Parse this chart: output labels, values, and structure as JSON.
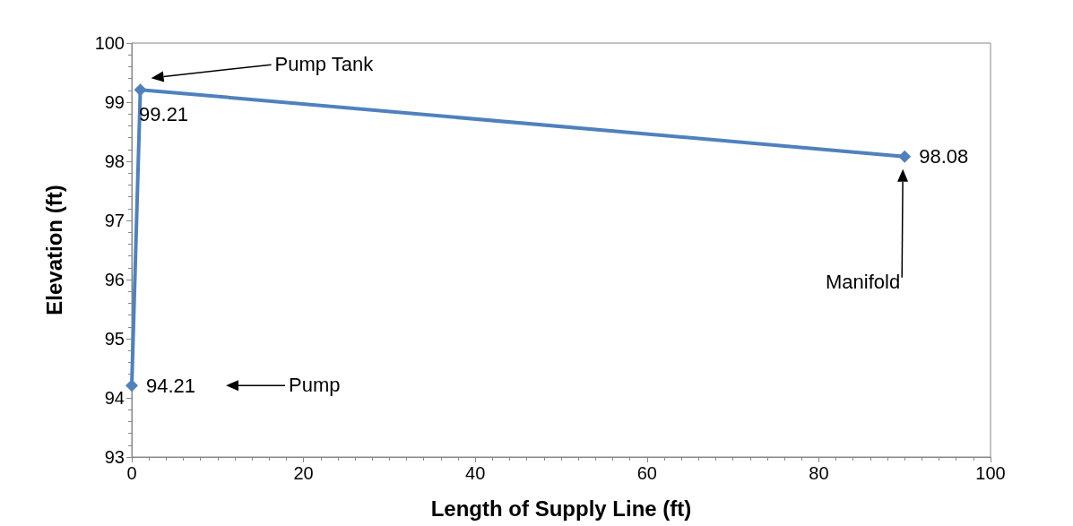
{
  "chart_data": {
    "type": "line",
    "xlabel": "Length of Supply Line (ft)",
    "ylabel": "Elevation (ft)",
    "x": [
      0,
      1,
      90
    ],
    "series": [
      {
        "color": "#4f81bd",
        "values": [
          94.21,
          99.21,
          98.08
        ]
      }
    ],
    "data_labels": true,
    "marker": "diamond",
    "line_style": "solid",
    "grid": false,
    "xlim": [
      0,
      100
    ],
    "xticks": [
      0,
      20,
      40,
      60,
      80,
      100
    ],
    "ylim": [
      93,
      100
    ],
    "yticks": [
      93,
      94,
      95,
      96,
      97,
      98,
      99,
      100
    ],
    "annotations": [
      "Pump",
      "Pump Tank",
      "Manifold"
    ]
  }
}
